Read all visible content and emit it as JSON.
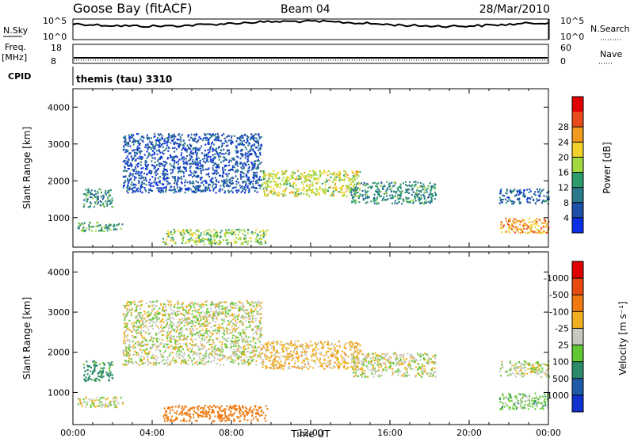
{
  "header": {
    "station": "Goose Bay (fitACF)",
    "beam": "Beam 04",
    "date": "28/Mar/2010"
  },
  "params": {
    "nsky_label": "N.Sky",
    "nsearch_label": "N.Search",
    "freq_label": "Freq.",
    "freq_unit": "[MHz]",
    "nave_label": "Nave",
    "cpid_label": "CPID",
    "cpid_value": "themis (tau) 3310",
    "noise_top": "10^5",
    "noise_bottom": "10^0",
    "freq_top": "18",
    "freq_bottom": "8",
    "nave_top": "60",
    "nave_bottom": "0"
  },
  "chart_data": [
    {
      "type": "heatmap",
      "panel": "power",
      "ylabel": "Slant Range [km]",
      "xlabel": "",
      "x_ticks": [
        "00:00",
        "04:00",
        "08:00",
        "12:00",
        "16:00",
        "20:00",
        "00:00"
      ],
      "y_ticks": [
        1000,
        2000,
        3000,
        4000
      ],
      "ylim": [
        200,
        4500
      ],
      "xlim_hours": [
        0,
        24
      ],
      "colorbar": {
        "label": "Power [dB]",
        "ticks": [
          "4",
          "8",
          "12",
          "16",
          "20",
          "24",
          "28"
        ],
        "colors": [
          "#0b2fe6",
          "#1e4fa8",
          "#2a7a8c",
          "#2e9b6a",
          "#a0d840",
          "#f2d22a",
          "#f09a20",
          "#e84a1a",
          "#e00000"
        ]
      },
      "echo_regions": [
        {
          "t_start": 0.2,
          "t_end": 2.5,
          "r_start": 650,
          "r_end": 900,
          "power": 14
        },
        {
          "t_start": 0.5,
          "t_end": 2.0,
          "r_start": 1300,
          "r_end": 1800,
          "power": 12
        },
        {
          "t_start": 2.5,
          "t_end": 9.5,
          "r_start": 1700,
          "r_end": 3300,
          "power": 6
        },
        {
          "t_start": 4.5,
          "t_end": 9.8,
          "r_start": 300,
          "r_end": 700,
          "power": 18
        },
        {
          "t_start": 9.5,
          "t_end": 14.5,
          "r_start": 1600,
          "r_end": 2300,
          "power": 20
        },
        {
          "t_start": 14.0,
          "t_end": 18.3,
          "r_start": 1400,
          "r_end": 2000,
          "power": 12
        },
        {
          "t_start": 21.5,
          "t_end": 24.0,
          "r_start": 1400,
          "r_end": 1800,
          "power": 8
        },
        {
          "t_start": 21.5,
          "t_end": 24.0,
          "r_start": 600,
          "r_end": 1000,
          "power": 26
        }
      ]
    },
    {
      "type": "heatmap",
      "panel": "velocity",
      "ylabel": "Slant Range [km]",
      "xlabel": "Time UT",
      "x_ticks": [
        "00:00",
        "04:00",
        "08:00",
        "12:00",
        "16:00",
        "20:00",
        "00:00"
      ],
      "y_ticks": [
        1000,
        2000,
        3000,
        4000
      ],
      "ylim": [
        200,
        4500
      ],
      "xlim_hours": [
        0,
        24
      ],
      "colorbar": {
        "label": "Velocity [m s⁻¹]",
        "ticks": [
          "1000",
          "500",
          "100",
          "25",
          "-25",
          "-100",
          "-500",
          "-1000"
        ],
        "colors": [
          "#1030d0",
          "#1e5aa8",
          "#2a8a6a",
          "#62c832",
          "#c8c8c0",
          "#f0b020",
          "#f07a10",
          "#e84a10",
          "#e00000"
        ]
      },
      "echo_regions": [
        {
          "t_start": 0.2,
          "t_end": 2.5,
          "r_start": 650,
          "r_end": 900,
          "velocity": 0
        },
        {
          "t_start": 0.5,
          "t_end": 2.0,
          "r_start": 1300,
          "r_end": 1800,
          "velocity": 150
        },
        {
          "t_start": 2.5,
          "t_end": 9.5,
          "r_start": 1700,
          "r_end": 3300,
          "velocity": 0
        },
        {
          "t_start": 4.5,
          "t_end": 9.8,
          "r_start": 300,
          "r_end": 700,
          "velocity": -200
        },
        {
          "t_start": 9.5,
          "t_end": 14.5,
          "r_start": 1600,
          "r_end": 2300,
          "velocity": -50
        },
        {
          "t_start": 14.0,
          "t_end": 18.3,
          "r_start": 1400,
          "r_end": 2000,
          "velocity": 0
        },
        {
          "t_start": 21.5,
          "t_end": 24.0,
          "r_start": 1400,
          "r_end": 1800,
          "velocity": 0
        },
        {
          "t_start": 21.5,
          "t_end": 24.0,
          "r_start": 600,
          "r_end": 1000,
          "velocity": 60
        }
      ]
    }
  ]
}
